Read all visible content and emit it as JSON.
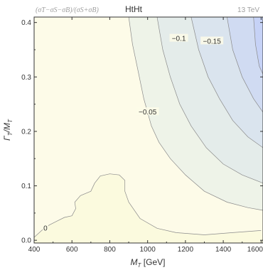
{
  "header": {
    "formula": "(σT−σS−σB)/(σS+σB)",
    "title": "HtHt",
    "energy": "13 TeV"
  },
  "chart_data": {
    "type": "contour",
    "xlabel": "M_T [GeV]",
    "ylabel": "Γ_T/M_T",
    "xlim": [
      400,
      1610
    ],
    "ylim": [
      -0.005,
      0.41
    ],
    "x_ticks": [
      400,
      600,
      800,
      1000,
      1200,
      1400,
      1600
    ],
    "x_tick_labels": [
      "400",
      "600",
      "800",
      "1000",
      "1200",
      "1400",
      "1600"
    ],
    "y_ticks": [
      0.0,
      0.1,
      0.2,
      0.3,
      0.4
    ],
    "y_tick_labels": [
      "0.0",
      "0.1",
      "0.2",
      "0.3",
      "0.4"
    ],
    "colors": {
      "base": "#fdfbe8",
      "inner_island": "#fbfade",
      "level_1": "#eef3e8",
      "level_2": "#e4ecea",
      "level_3": "#dae4ee",
      "level_4": "#d0dbf2",
      "level_5": "#c6d2f6",
      "contour_line": "#8a8a8a"
    },
    "contours": [
      {
        "level": 0,
        "label": "0",
        "label_at": [
          460,
          0.022
        ],
        "points": [
          [
            402,
            0.006
          ],
          [
            440,
            0.018
          ],
          [
            480,
            0.028
          ],
          [
            520,
            0.035
          ],
          [
            560,
            0.042
          ],
          [
            600,
            0.045
          ],
          [
            620,
            0.058
          ],
          [
            615,
            0.07
          ],
          [
            645,
            0.082
          ],
          [
            700,
            0.09
          ],
          [
            720,
            0.105
          ],
          [
            750,
            0.118
          ],
          [
            800,
            0.122
          ],
          [
            850,
            0.12
          ],
          [
            880,
            0.11
          ],
          [
            880,
            0.09
          ],
          [
            900,
            0.07
          ],
          [
            960,
            0.04
          ],
          [
            1050,
            0.022
          ],
          [
            1150,
            0.014
          ],
          [
            1300,
            0.01
          ],
          [
            1450,
            0.014
          ],
          [
            1600,
            0.018
          ]
        ]
      },
      {
        "level": -0.05,
        "label": "−0.05",
        "label_at": [
          1000,
          0.235
        ],
        "points": [
          [
            900,
            0.41
          ],
          [
            920,
            0.36
          ],
          [
            950,
            0.31
          ],
          [
            980,
            0.26
          ],
          [
            1020,
            0.21
          ],
          [
            1060,
            0.18
          ],
          [
            1120,
            0.15
          ],
          [
            1200,
            0.12
          ],
          [
            1300,
            0.09
          ],
          [
            1420,
            0.07
          ],
          [
            1530,
            0.06
          ],
          [
            1610,
            0.055
          ]
        ]
      },
      {
        "level": -0.1,
        "label": "−0.1",
        "label_at": [
          1165,
          0.37
        ],
        "points": [
          [
            1050,
            0.41
          ],
          [
            1080,
            0.35
          ],
          [
            1120,
            0.3
          ],
          [
            1170,
            0.25
          ],
          [
            1230,
            0.21
          ],
          [
            1310,
            0.17
          ],
          [
            1400,
            0.14
          ],
          [
            1500,
            0.12
          ],
          [
            1610,
            0.105
          ]
        ]
      },
      {
        "level": -0.15,
        "label": "−0.15",
        "label_at": [
          1340,
          0.365
        ],
        "points": [
          [
            1230,
            0.41
          ],
          [
            1270,
            0.35
          ],
          [
            1320,
            0.3
          ],
          [
            1380,
            0.26
          ],
          [
            1450,
            0.22
          ],
          [
            1530,
            0.19
          ],
          [
            1610,
            0.17
          ]
        ]
      },
      {
        "level": -0.2,
        "label": "",
        "points": [
          [
            1420,
            0.41
          ],
          [
            1450,
            0.35
          ],
          [
            1500,
            0.3
          ],
          [
            1560,
            0.26
          ],
          [
            1610,
            0.235
          ]
        ]
      },
      {
        "level": -0.25,
        "label": "",
        "points": [
          [
            1560,
            0.41
          ],
          [
            1570,
            0.36
          ],
          [
            1590,
            0.32
          ],
          [
            1610,
            0.305
          ]
        ]
      }
    ]
  }
}
